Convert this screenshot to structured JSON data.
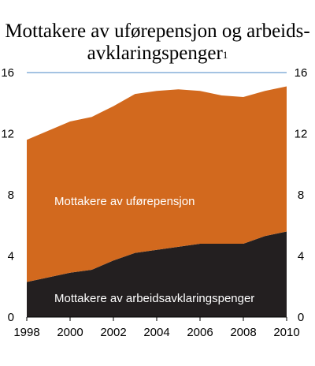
{
  "chart_data": {
    "type": "area",
    "title_line1": "Mottakere av uførepensjon og arbeids-",
    "title_line2": "avklaringspenger",
    "title_footnote": "1",
    "x": [
      1998,
      1999,
      2000,
      2001,
      2002,
      2003,
      2004,
      2005,
      2006,
      2007,
      2008,
      2009,
      2010
    ],
    "xticks": [
      "1998",
      "2000",
      "2002",
      "2004",
      "2006",
      "2008",
      "2010"
    ],
    "yticks": [
      "0",
      "4",
      "8",
      "12",
      "16"
    ],
    "ylim": [
      0,
      16
    ],
    "grid": false,
    "series": [
      {
        "name": "Mottakere av arbeidsavklaringspenger",
        "color": "#231f20",
        "values": [
          2.3,
          2.6,
          2.9,
          3.1,
          3.7,
          4.2,
          4.4,
          4.6,
          4.8,
          4.8,
          4.8,
          5.3,
          5.6
        ]
      },
      {
        "name": "Mottakere av uførepensjon",
        "color": "#d2691e",
        "values": [
          9.3,
          9.6,
          9.9,
          10.0,
          10.1,
          10.4,
          10.4,
          10.3,
          10.0,
          9.7,
          9.6,
          9.5,
          9.5
        ]
      }
    ],
    "top_border_color": "#6d9fd0"
  }
}
